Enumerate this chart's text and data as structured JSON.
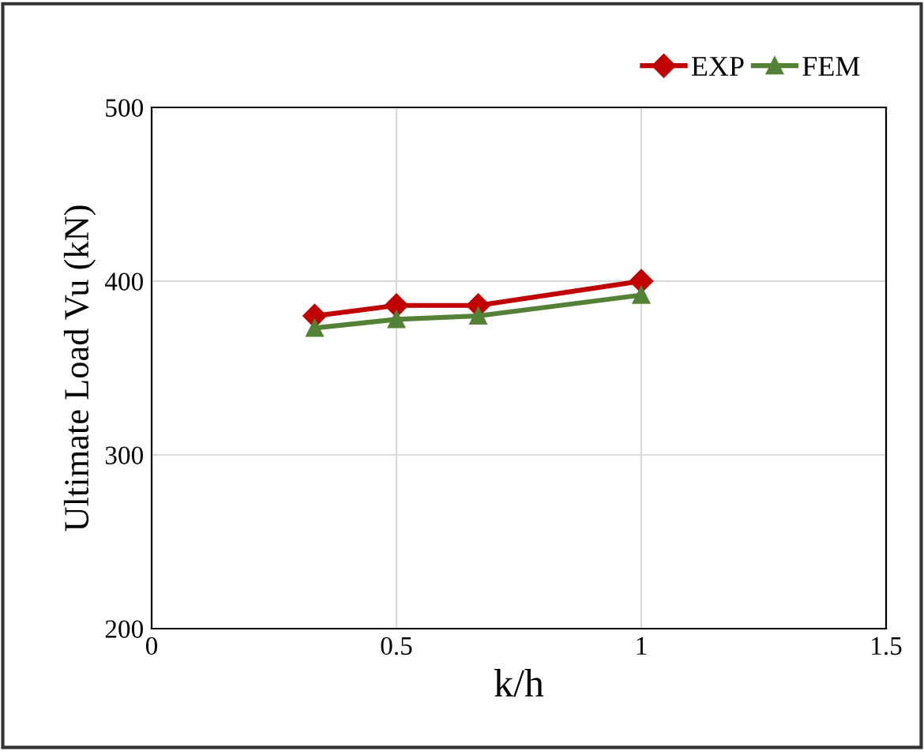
{
  "chart_data": {
    "type": "line",
    "xlabel": "k/h",
    "ylabel": "Ultimate Load Vu (kN)",
    "x": [
      0.333,
      0.5,
      0.667,
      1
    ],
    "series": [
      {
        "name": "EXP",
        "color": "#c00000",
        "values": [
          380,
          386,
          386,
          400
        ],
        "marker": "diamond"
      },
      {
        "name": "FEM",
        "color": "#538135",
        "values": [
          373,
          378,
          380,
          392
        ],
        "marker": "triangle"
      }
    ],
    "xlim": [
      0,
      1.5
    ],
    "xticks": [
      0,
      0.5,
      1,
      1.5
    ],
    "ylim": [
      200,
      500
    ],
    "yticks": [
      200,
      300,
      400,
      500
    ],
    "grid": true,
    "legend": "top right",
    "line_style": "solid"
  }
}
